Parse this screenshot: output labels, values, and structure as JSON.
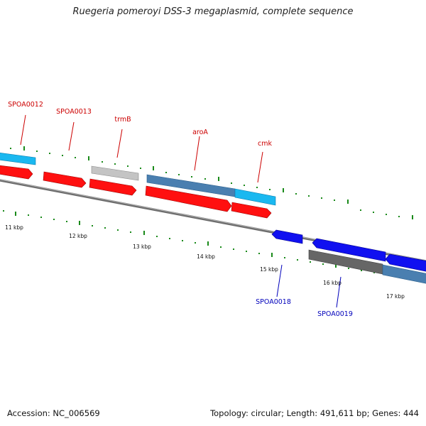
{
  "title": "Ruegeria pomeroyi DSS-3 megaplasmid, complete sequence",
  "footer": {
    "accession": "Accession: NC_006569",
    "summary": "Topology: circular; Length: 491,611 bp; Genes: 444"
  },
  "scale_labels": [
    "11 kbp",
    "12 kbp",
    "13 kbp",
    "14 kbp",
    "15 kbp",
    "16 kbp",
    "17 kbp"
  ],
  "gene_labels": {
    "top": [
      "SPOA0012",
      "SPOA0013",
      "trmB",
      "aroA",
      "cmk"
    ],
    "bottom": [
      "SPOA0018",
      "SPOA0019"
    ]
  },
  "colors": {
    "forward_gene": "#ff0000",
    "reverse_gene": "#0000ee",
    "cog_cyan": "#1ab8f0",
    "cog_steel": "#4a7fb0",
    "cog_grey": "#bdbdbd",
    "cog_dark": "#666666",
    "backbone": "#7a7a7a",
    "tick": "#1a8a1a",
    "top_label": "#cc0000",
    "bottom_label": "#0000bb"
  }
}
